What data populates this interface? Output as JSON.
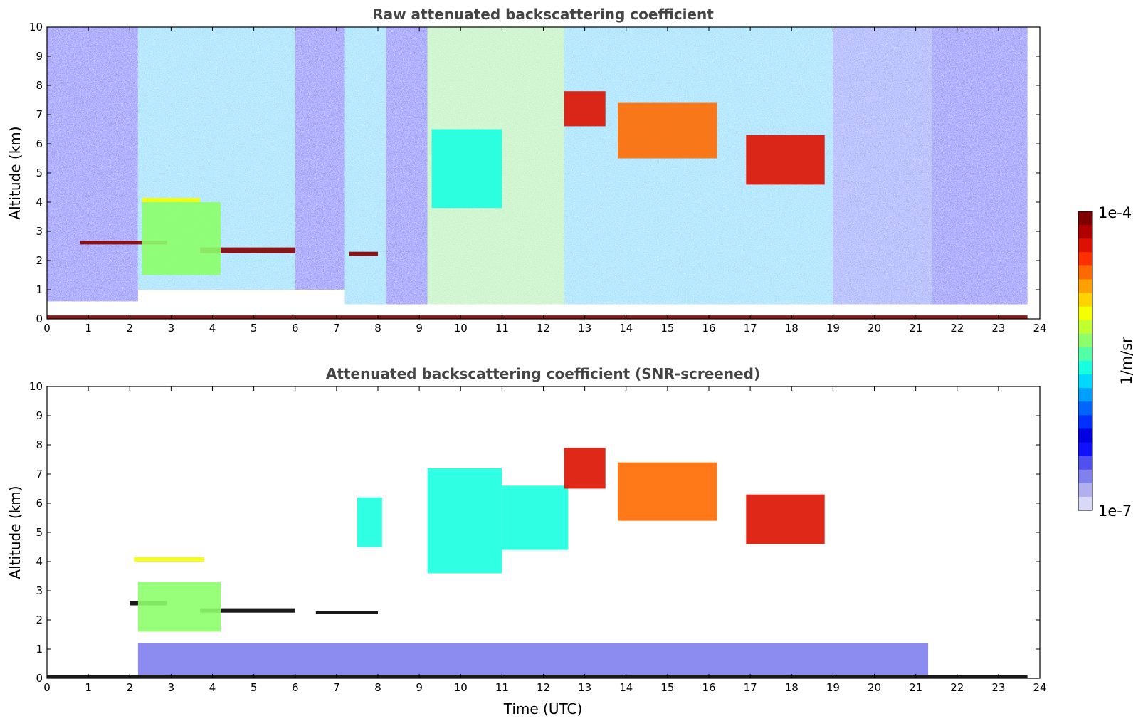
{
  "chart_data": [
    {
      "type": "heatmap",
      "title": "Raw attenuated backscattering coefficient",
      "xlabel": "",
      "ylabel": "Altitude (km)",
      "xlim": [
        0,
        24
      ],
      "ylim": [
        0,
        10
      ],
      "xticks": [
        "0",
        "1",
        "2",
        "3",
        "4",
        "5",
        "6",
        "7",
        "8",
        "9",
        "10",
        "11",
        "12",
        "13",
        "14",
        "15",
        "16",
        "17",
        "18",
        "19",
        "20",
        "21",
        "22",
        "23",
        "24"
      ],
      "yticks": [
        "0",
        "1",
        "2",
        "3",
        "4",
        "5",
        "6",
        "7",
        "8",
        "9",
        "10"
      ],
      "scale": "log",
      "colorbar_range": [
        "1e-7",
        "1e-4"
      ],
      "features": [
        {
          "kind": "background",
          "t": [
            0,
            2.2
          ],
          "z": [
            0.6,
            10
          ],
          "level": "low"
        },
        {
          "kind": "background",
          "t": [
            2.2,
            6.0
          ],
          "z": [
            1.0,
            10
          ],
          "level": "mid"
        },
        {
          "kind": "background",
          "t": [
            6.0,
            7.2
          ],
          "z": [
            1.0,
            10
          ],
          "level": "low"
        },
        {
          "kind": "background",
          "t": [
            7.2,
            8.2
          ],
          "z": [
            0.5,
            10
          ],
          "level": "mid"
        },
        {
          "kind": "background",
          "t": [
            8.2,
            9.2
          ],
          "z": [
            0.5,
            10
          ],
          "level": "low"
        },
        {
          "kind": "background",
          "t": [
            9.2,
            12.5
          ],
          "z": [
            0.5,
            10
          ],
          "level": "mid-high"
        },
        {
          "kind": "background",
          "t": [
            12.5,
            19.0
          ],
          "z": [
            0.5,
            10
          ],
          "level": "mid"
        },
        {
          "kind": "background",
          "t": [
            19.0,
            21.4
          ],
          "z": [
            0.5,
            10
          ],
          "level": "low-mid"
        },
        {
          "kind": "background",
          "t": [
            21.4,
            23.7
          ],
          "z": [
            0.5,
            10
          ],
          "level": "low"
        },
        {
          "kind": "cloud_layer",
          "t": [
            0.8,
            2.9
          ],
          "z": [
            2.55,
            2.68
          ],
          "peak": "1e-4"
        },
        {
          "kind": "cloud_layer",
          "t": [
            3.7,
            6.0
          ],
          "z": [
            2.25,
            2.45
          ],
          "peak": "1e-4"
        },
        {
          "kind": "cloud_layer",
          "t": [
            7.3,
            8.0
          ],
          "z": [
            2.15,
            2.3
          ],
          "peak": "1e-4"
        },
        {
          "kind": "cloud_layer",
          "t": [
            2.3,
            3.7
          ],
          "z": [
            4.0,
            4.15
          ],
          "peak": "1e-5"
        },
        {
          "kind": "virga",
          "t": [
            2.3,
            4.2
          ],
          "z": [
            1.5,
            4.0
          ],
          "peak": "5e-6"
        },
        {
          "kind": "cirrus",
          "t": [
            9.3,
            11.0
          ],
          "z": [
            3.8,
            6.5
          ],
          "peak": "3e-6"
        },
        {
          "kind": "cirrus",
          "t": [
            12.5,
            13.5
          ],
          "z": [
            6.6,
            7.8
          ],
          "peak": "5e-5"
        },
        {
          "kind": "cirrus",
          "t": [
            13.8,
            16.2
          ],
          "z": [
            5.5,
            7.4
          ],
          "peak": "3e-5"
        },
        {
          "kind": "cirrus",
          "t": [
            16.9,
            18.8
          ],
          "z": [
            4.6,
            6.3
          ],
          "peak": "5e-5"
        },
        {
          "kind": "surface_layer",
          "t": [
            0,
            23.7
          ],
          "z": [
            0,
            0.12
          ],
          "peak": "1e-4"
        }
      ]
    },
    {
      "type": "heatmap",
      "title": "Attenuated backscattering coefficient (SNR-screened)",
      "xlabel": "Time (UTC)",
      "ylabel": "Altitude (km)",
      "xlim": [
        0,
        24
      ],
      "ylim": [
        0,
        10
      ],
      "xticks": [
        "0",
        "1",
        "2",
        "3",
        "4",
        "5",
        "6",
        "7",
        "8",
        "9",
        "10",
        "11",
        "12",
        "13",
        "14",
        "15",
        "16",
        "17",
        "18",
        "19",
        "20",
        "21",
        "22",
        "23",
        "24"
      ],
      "yticks": [
        "0",
        "1",
        "2",
        "3",
        "4",
        "5",
        "6",
        "7",
        "8",
        "9",
        "10"
      ],
      "scale": "log",
      "colorbar_range": [
        "1e-7",
        "1e-4"
      ],
      "features": [
        {
          "kind": "cloud_layer",
          "t": [
            2.0,
            2.9
          ],
          "z": [
            2.5,
            2.65
          ],
          "peak": "saturated"
        },
        {
          "kind": "cloud_layer",
          "t": [
            3.7,
            6.0
          ],
          "z": [
            2.25,
            2.4
          ],
          "peak": "saturated"
        },
        {
          "kind": "cloud_layer",
          "t": [
            6.5,
            8.0
          ],
          "z": [
            2.2,
            2.3
          ],
          "peak": "saturated"
        },
        {
          "kind": "cloud_layer",
          "t": [
            2.1,
            3.8
          ],
          "z": [
            4.0,
            4.15
          ],
          "peak": "1e-5"
        },
        {
          "kind": "virga",
          "t": [
            2.2,
            4.2
          ],
          "z": [
            1.6,
            3.3
          ],
          "peak": "5e-6"
        },
        {
          "kind": "cirrus",
          "t": [
            7.5,
            8.1
          ],
          "z": [
            4.5,
            6.2
          ],
          "peak": "3e-6"
        },
        {
          "kind": "cirrus",
          "t": [
            9.2,
            11.0
          ],
          "z": [
            3.6,
            7.2
          ],
          "peak": "3e-6"
        },
        {
          "kind": "cirrus",
          "t": [
            11.0,
            12.6
          ],
          "z": [
            4.4,
            6.6
          ],
          "peak": "3e-6"
        },
        {
          "kind": "cirrus",
          "t": [
            12.5,
            13.5
          ],
          "z": [
            6.5,
            7.9
          ],
          "peak": "5e-5"
        },
        {
          "kind": "cirrus",
          "t": [
            13.8,
            16.2
          ],
          "z": [
            5.4,
            7.4
          ],
          "peak": "3e-5"
        },
        {
          "kind": "cirrus",
          "t": [
            16.9,
            18.8
          ],
          "z": [
            4.6,
            6.3
          ],
          "peak": "5e-5"
        },
        {
          "kind": "boundary_layer",
          "t": [
            2.2,
            21.3
          ],
          "z": [
            0.1,
            1.2
          ],
          "peak": "2e-7"
        },
        {
          "kind": "surface_layer",
          "t": [
            0,
            23.7
          ],
          "z": [
            0,
            0.12
          ],
          "peak": "saturated"
        }
      ]
    }
  ],
  "colorbar": {
    "top_label": "1e-4",
    "bottom_label": "1e-7",
    "unit_label": "1/m/sr",
    "colors": [
      "#800000",
      "#b00000",
      "#dd1100",
      "#ff3000",
      "#ff6a00",
      "#ffa000",
      "#ffd200",
      "#f4ff00",
      "#c0ff30",
      "#8cff6a",
      "#50ffa6",
      "#18ffe0",
      "#00d8ff",
      "#00a0ff",
      "#0064ff",
      "#0030ff",
      "#0000e0",
      "#1010ff",
      "#5050ee",
      "#8080ee",
      "#b0b0f0",
      "#d8d8f8"
    ]
  }
}
